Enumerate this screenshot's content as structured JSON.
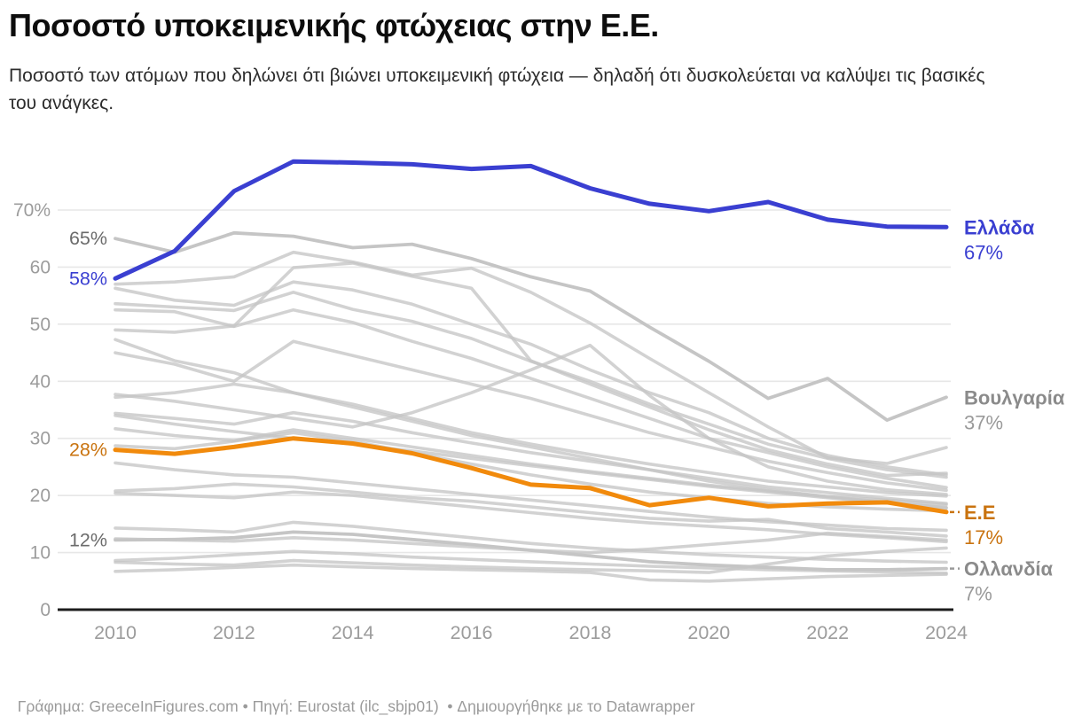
{
  "header": {
    "title": "Ποσοστό υποκειμενικής φτώχειας στην Ε.Ε.",
    "subtitle": "Ποσοστό των ατόμων που δηλώνει ότι βιώνει υποκειμενική φτώχεια — δηλαδή ότι δυσκολεύεται να καλύψει τις βασικές του ανάγκες."
  },
  "footer": {
    "byline_prefix": "Γράφημα: ",
    "byline_link": "GreeceInFigures.com",
    "sep1": " • ",
    "source_prefix": "Πηγή: ",
    "source_link": "Eurostat (ilc_sbjp01)",
    "sep2": "  • ",
    "attribution_prefix": "Δημιουργήθηκε με το ",
    "attribution_link": "Datawrapper"
  },
  "colors": {
    "highlight_blue": "#3A3FD1",
    "highlight_orange": "#F18A0C",
    "orange_text": "#C9730F",
    "gray_line": "#C5C5C5",
    "gray_label": "#8B8B8B",
    "annotation_gray": "#6B6B6B",
    "axis_text": "#9C9C9C",
    "gridline": "#E7E7E7",
    "baseline": "#1d1d1d"
  },
  "chart_data": {
    "type": "line",
    "x": [
      2010,
      2011,
      2012,
      2013,
      2014,
      2015,
      2016,
      2017,
      2018,
      2019,
      2020,
      2021,
      2022,
      2023,
      2024
    ],
    "x_tick_labels": [
      "2010",
      "2012",
      "2014",
      "2016",
      "2018",
      "2020",
      "2022",
      "2024"
    ],
    "x_tick_years": [
      2010,
      2012,
      2014,
      2016,
      2018,
      2020,
      2022,
      2024
    ],
    "ylim": [
      0,
      79
    ],
    "grid": true,
    "legend_position": "right-edge-labels",
    "y_ticks": [
      {
        "v": 70,
        "label": "70%"
      },
      {
        "v": 60,
        "label": "60"
      },
      {
        "v": 50,
        "label": "50"
      },
      {
        "v": 40,
        "label": "40"
      },
      {
        "v": 30,
        "label": "30"
      },
      {
        "v": 20,
        "label": "20"
      },
      {
        "v": 10,
        "label": "10"
      },
      {
        "v": 0,
        "label": "0"
      }
    ],
    "series": [
      {
        "id": "ellada",
        "name": "Ελλάδα",
        "role": "highlight-blue",
        "end_label": "Ελλάδα",
        "end_value_label": "67%",
        "dash_leader": false,
        "values": [
          58,
          62.8,
          73.3,
          78.5,
          78.3,
          78,
          77.2,
          77.7,
          73.8,
          71.1,
          69.8,
          71.4,
          68.3,
          67.1,
          67
        ]
      },
      {
        "id": "ee",
        "name": "Ε.Ε",
        "role": "highlight-orange",
        "end_label": "Ε.Ε",
        "end_value_label": "17%",
        "dash_leader": true,
        "values": [
          28,
          27.3,
          28.5,
          30,
          29.1,
          27.4,
          24.8,
          21.9,
          21.3,
          18.3,
          19.6,
          18.1,
          18.6,
          18.8,
          17.1
        ]
      },
      {
        "id": "voulgaria",
        "name": "Βουλγαρία",
        "role": "labeled-gray",
        "end_label": "Βουλγαρία",
        "end_value_label": "37%",
        "dash_leader": false,
        "values": [
          65,
          62.6,
          66,
          65.4,
          63.4,
          64,
          61.5,
          58.3,
          55.8,
          49.5,
          43.5,
          37,
          40.5,
          33.2,
          37.2
        ]
      },
      {
        "id": "ollandia",
        "name": "Ολλανδία",
        "role": "labeled-gray",
        "end_label": "Ολλανδία",
        "end_value_label": "7%",
        "dash_leader": true,
        "values": [
          12.2,
          12.3,
          12.6,
          13.6,
          13.2,
          12.3,
          11.4,
          10.4,
          9.4,
          8.4,
          7.8,
          7.4,
          7,
          7,
          7.2
        ]
      }
    ],
    "background_series_note": "unlabeled EU member-state lines (gray), values approximate",
    "background_series": [
      [
        57,
        57.4,
        58.3,
        62.6,
        60.9,
        58.6,
        59.8,
        55.6,
        50.2,
        44,
        38,
        32,
        26.6,
        25.6,
        28.4
      ],
      [
        56.3,
        54.2,
        53.3,
        57.4,
        56,
        53.5,
        50,
        46.5,
        42,
        38,
        34.5,
        30,
        27,
        25,
        23.6
      ],
      [
        53.6,
        53,
        52.4,
        55.6,
        52.6,
        50.5,
        47.5,
        43.5,
        40,
        36,
        32.5,
        29,
        26.5,
        24.5,
        23.2
      ],
      [
        52.5,
        52.2,
        49.6,
        52.5,
        50.3,
        47,
        44,
        40.5,
        37,
        33.5,
        30,
        27.5,
        25,
        23,
        21.4
      ],
      [
        49,
        48.6,
        49.7,
        59.9,
        60.7,
        58.4,
        56.3,
        43.6,
        39.5,
        35.5,
        31.5,
        28,
        25.5,
        23.5,
        23.9
      ],
      [
        47.3,
        43.6,
        41.5,
        38,
        35.5,
        33,
        30.5,
        28.5,
        26.5,
        24.5,
        22.5,
        21,
        19.8,
        18.8,
        17.8
      ],
      [
        45,
        43,
        40,
        47,
        44.5,
        42,
        39.5,
        37,
        34,
        31,
        28.5,
        26,
        24,
        22.2,
        20.9
      ],
      [
        37.7,
        36.5,
        35,
        33.5,
        32,
        34.5,
        38,
        42,
        46.3,
        37.5,
        30,
        25,
        22.5,
        21,
        20.2
      ],
      [
        37.2,
        38,
        39.5,
        38,
        36,
        33.5,
        31,
        29,
        27.2,
        25.5,
        24,
        22.5,
        21.5,
        20.5,
        19.9
      ],
      [
        34.4,
        33.5,
        32.5,
        34.5,
        33,
        31,
        29.2,
        27.5,
        26,
        24.5,
        23,
        21.5,
        20.5,
        19.5,
        18.6
      ],
      [
        34,
        32.5,
        31.2,
        30,
        29,
        27.8,
        26.5,
        25.2,
        24,
        22.8,
        21.6,
        20.6,
        19.6,
        18.7,
        17.9
      ],
      [
        31.7,
        30.5,
        29.6,
        31.5,
        30,
        28.5,
        27,
        25.5,
        24.2,
        23,
        21.8,
        20.8,
        19.8,
        19.2,
        18.4
      ],
      [
        28.7,
        28.2,
        29.5,
        31,
        29.5,
        27.5,
        25.5,
        23.6,
        22,
        20.6,
        19.6,
        18.6,
        18,
        17.6,
        17.3
      ],
      [
        25.7,
        24.5,
        23.6,
        23.2,
        22.2,
        21.2,
        20.2,
        19.2,
        18.2,
        17.2,
        16.2,
        15.4,
        14.8,
        14.2,
        13.9
      ],
      [
        20.8,
        21.2,
        22,
        21.5,
        20.6,
        19.6,
        19,
        18,
        17,
        16,
        15.5,
        15.8,
        14.2,
        13.6,
        12.9
      ],
      [
        20.4,
        20,
        19.6,
        20.6,
        20,
        19,
        18,
        17,
        16,
        15.2,
        14.6,
        14,
        13.2,
        12.6,
        11.9
      ],
      [
        14.3,
        14,
        13.6,
        15.3,
        14.6,
        13.6,
        12.6,
        11.6,
        10.8,
        10.2,
        9.6,
        9.2,
        8.8,
        8.5,
        8.3
      ],
      [
        12.4,
        12.2,
        12,
        12.6,
        12.2,
        11.6,
        11,
        10.4,
        10,
        10.6,
        11.4,
        12.2,
        13.4,
        12.8,
        12.2
      ],
      [
        8.6,
        9,
        9.6,
        10.2,
        9.8,
        9.2,
        8.8,
        8.4,
        8,
        7.6,
        7.3,
        7,
        6.8,
        6.6,
        6.4
      ],
      [
        8.3,
        8,
        7.8,
        8.6,
        8.2,
        7.8,
        7.5,
        7.2,
        7,
        6.8,
        6.5,
        8,
        9.4,
        10.2,
        10.8
      ],
      [
        6.7,
        7,
        7.4,
        7.8,
        7.5,
        7.2,
        7,
        6.8,
        6.5,
        5.2,
        5,
        5.4,
        5.8,
        6,
        6.2
      ]
    ],
    "annotations": [
      {
        "text": "65%",
        "value": 65.0,
        "color_key": "annotation_gray"
      },
      {
        "text": "58%",
        "value": 58.0,
        "color_key": "highlight_blue"
      },
      {
        "text": "28%",
        "value": 28.0,
        "color_key": "orange_text"
      },
      {
        "text": "12%",
        "value": 12.2,
        "color_key": "annotation_gray"
      }
    ]
  }
}
